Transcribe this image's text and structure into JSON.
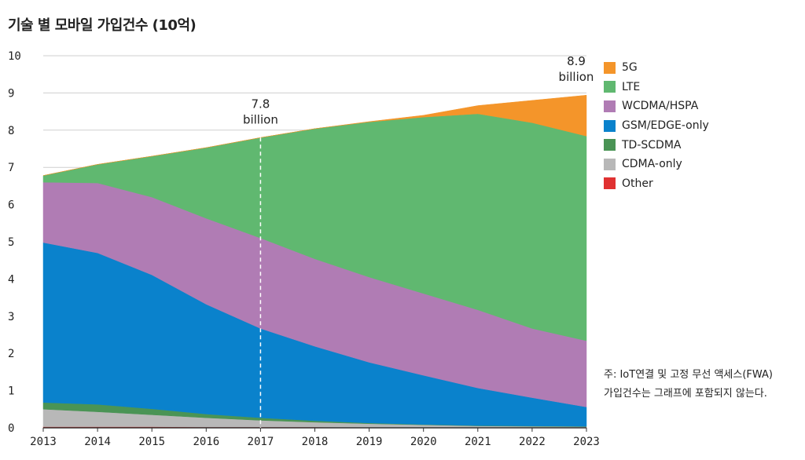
{
  "chart_data": {
    "type": "area",
    "title": "기술 별 모바일 가입건수 (10억)",
    "xlabel": "",
    "ylabel": "",
    "x": [
      2013,
      2014,
      2015,
      2016,
      2017,
      2018,
      2019,
      2020,
      2021,
      2022,
      2023
    ],
    "ylim": [
      0,
      10
    ],
    "yticks": [
      0,
      1,
      2,
      3,
      4,
      5,
      6,
      7,
      8,
      9,
      10
    ],
    "grid": true,
    "legend_placement": "right",
    "stacked": true,
    "series": [
      {
        "name": "Other",
        "color": "#e03131",
        "values": [
          0.03,
          0.03,
          0.03,
          0.02,
          0.02,
          0.02,
          0.01,
          0.01,
          0.01,
          0.01,
          0.01
        ]
      },
      {
        "name": "CDMA-only",
        "color": "#b8b8b8",
        "values": [
          0.47,
          0.4,
          0.32,
          0.25,
          0.18,
          0.13,
          0.1,
          0.07,
          0.04,
          0.03,
          0.02
        ]
      },
      {
        "name": "TD-SCDMA",
        "color": "#4a9455",
        "values": [
          0.18,
          0.2,
          0.16,
          0.1,
          0.07,
          0.04,
          0.02,
          0.01,
          0.01,
          0.01,
          0.01
        ]
      },
      {
        "name": "GSM/EDGE-only",
        "color": "#0a82cc",
        "values": [
          4.3,
          4.07,
          3.6,
          2.95,
          2.4,
          2.0,
          1.63,
          1.32,
          1.01,
          0.76,
          0.52
        ]
      },
      {
        "name": "WCDMA/HSPA",
        "color": "#b07cb4",
        "values": [
          1.62,
          1.88,
          2.09,
          2.31,
          2.43,
          2.35,
          2.29,
          2.2,
          2.1,
          1.86,
          1.78
        ]
      },
      {
        "name": "LTE",
        "color": "#60b870",
        "values": [
          0.18,
          0.5,
          1.1,
          1.9,
          2.7,
          3.5,
          4.17,
          4.74,
          5.27,
          5.53,
          5.5
        ]
      },
      {
        "name": "5G",
        "color": "#f4952a",
        "values": [
          0,
          0,
          0,
          0,
          0,
          0,
          0.01,
          0.05,
          0.22,
          0.6,
          1.1
        ]
      }
    ],
    "annotations": [
      {
        "x": 2017,
        "value": "7.8",
        "unit": "billion"
      },
      {
        "x": 2023,
        "value": "8.9",
        "unit": "billion"
      }
    ],
    "note_lines": [
      "주: IoT연결 및 고정 무선 액세스(FWA)",
      "가입건수는 그래프에 포함되지 않는다."
    ]
  }
}
